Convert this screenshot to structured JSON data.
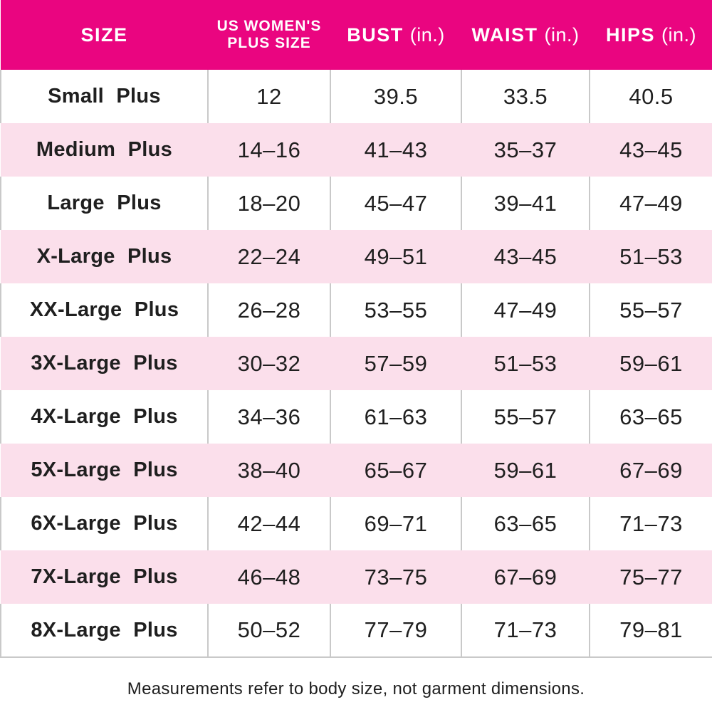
{
  "colors": {
    "header_bg": "#EA0580",
    "header_text": "#FFFFFF",
    "alt_row_bg": "#FBDFEB",
    "grid_line": "#C9C9C9",
    "body_text": "#1F1F1F"
  },
  "header": {
    "size_label": "SIZE",
    "plus_size_line1": "US WOMEN'S",
    "plus_size_line2": "PLUS SIZE",
    "bust_label": "BUST",
    "bust_unit": "(in.)",
    "waist_label": "WAIST",
    "waist_unit": "(in.)",
    "hips_label": "HIPS",
    "hips_unit": "(in.)"
  },
  "chart_data": {
    "type": "table",
    "title": "Plus size chart",
    "columns": [
      "SIZE",
      "US WOMEN'S PLUS SIZE",
      "BUST (in.)",
      "WAIST (in.)",
      "HIPS (in.)"
    ],
    "rows": [
      [
        "Small Plus",
        "12",
        "39.5",
        "33.5",
        "40.5"
      ],
      [
        "Medium Plus",
        "14–16",
        "41–43",
        "35–37",
        "43–45"
      ],
      [
        "Large Plus",
        "18–20",
        "45–47",
        "39–41",
        "47–49"
      ],
      [
        "X-Large Plus",
        "22–24",
        "49–51",
        "43–45",
        "51–53"
      ],
      [
        "XX-Large Plus",
        "26–28",
        "53–55",
        "47–49",
        "55–57"
      ],
      [
        "3X-Large Plus",
        "30–32",
        "57–59",
        "51–53",
        "59–61"
      ],
      [
        "4X-Large Plus",
        "34–36",
        "61–63",
        "55–57",
        "63–65"
      ],
      [
        "5X-Large Plus",
        "38–40",
        "65–67",
        "59–61",
        "67–69"
      ],
      [
        "6X-Large Plus",
        "42–44",
        "69–71",
        "63–65",
        "71–73"
      ],
      [
        "7X-Large Plus",
        "46–48",
        "73–75",
        "67–69",
        "75–77"
      ],
      [
        "8X-Large Plus",
        "50–52",
        "77–79",
        "71–73",
        "79–81"
      ]
    ]
  },
  "footnote": "Measurements refer to body size, not garment dimensions."
}
